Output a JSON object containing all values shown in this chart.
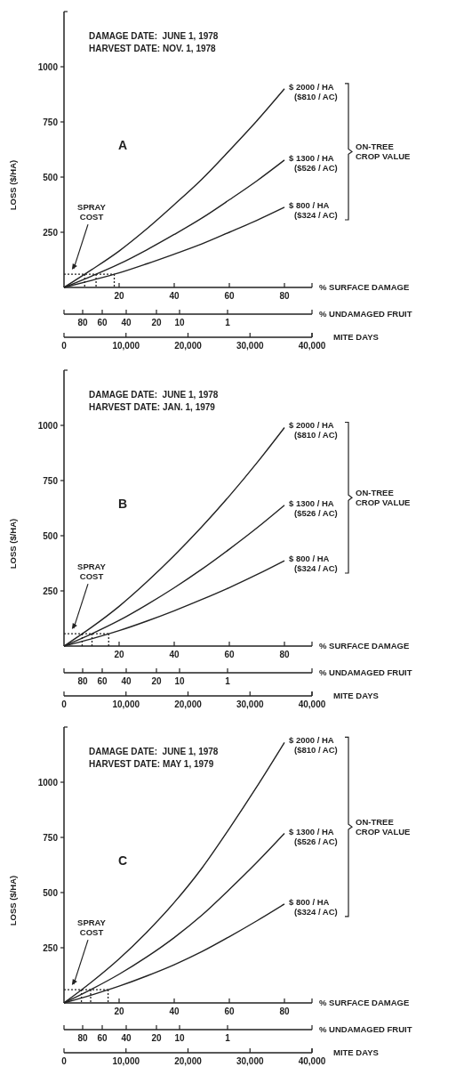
{
  "chart_data": [
    {
      "type": "line",
      "ylabel": "LOSS ($/HA)",
      "xlabel": "% SURFACE DAMAGE",
      "x2label": "MITE DAYS",
      "x": [
        0,
        10,
        20,
        30,
        40,
        50,
        60,
        70,
        80
      ],
      "series": [
        {
          "name": "$ 2000 / HA ($810 / AC)",
          "color": "#222222",
          "values": [
            0,
            80,
            165,
            265,
            375,
            490,
            620,
            755,
            900
          ]
        },
        {
          "name": "$ 1300 / HA ($526 / AC)",
          "color": "#222222",
          "values": [
            0,
            51,
            106,
            170,
            240,
            314,
            397,
            483,
            577
          ]
        },
        {
          "name": "$ 800 / HA ($324 / AC)",
          "color": "#222222",
          "values": [
            0,
            32,
            66,
            107,
            151,
            197,
            250,
            304,
            363
          ]
        }
      ],
      "xlim": [
        0,
        90
      ],
      "xticks": [
        20,
        40,
        60,
        80
      ],
      "ylim": [
        0,
        1250
      ],
      "yticks": [
        250,
        500,
        750,
        1000
      ],
      "x2lim": [
        0,
        40000
      ],
      "x2ticks": [
        {
          "value": 0,
          "label": "0"
        },
        {
          "value": 10000,
          "label": "10,000"
        },
        {
          "value": 20000,
          "label": "20,000"
        },
        {
          "value": 30000,
          "label": "30,000"
        },
        {
          "value": 40000,
          "label": "40,000"
        }
      ],
      "ref_lines": [
        {
          "axis": "y",
          "value": 60,
          "label": "SPRAY COST",
          "line_style": "dotted"
        }
      ],
      "annotations": [
        "DAMAGE DATE:  JUNE 1, 1978",
        "HARVEST DATE: NOV. 1, 1978",
        "A",
        "ON-TREE CROP VALUE",
        "% UNDAMAGED FRUIT",
        "80",
        "60",
        "40",
        "20",
        "10",
        "1"
      ],
      "line_style": "solid"
    },
    {
      "type": "line",
      "ylabel": "LOSS ($/HA)",
      "xlabel": "% SURFACE DAMAGE",
      "x2label": "MITE DAYS",
      "x": [
        0,
        10,
        20,
        30,
        40,
        50,
        60,
        70,
        80
      ],
      "series": [
        {
          "name": "$ 2000 / HA ($810 / AC)",
          "color": "#222222",
          "values": [
            0,
            85,
            180,
            290,
            410,
            540,
            680,
            830,
            990
          ]
        },
        {
          "name": "$ 1300 / HA ($526 / AC)",
          "color": "#222222",
          "values": [
            0,
            55,
            116,
            187,
            264,
            348,
            439,
            535,
            638
          ]
        },
        {
          "name": "$ 800 / HA ($324 / AC)",
          "color": "#222222",
          "values": [
            0,
            33,
            70,
            113,
            160,
            211,
            265,
            324,
            387
          ]
        }
      ],
      "xlim": [
        0,
        90
      ],
      "xticks": [
        20,
        40,
        60,
        80
      ],
      "ylim": [
        0,
        1250
      ],
      "yticks": [
        250,
        500,
        750,
        1000
      ],
      "x2lim": [
        0,
        40000
      ],
      "x2ticks": [
        {
          "value": 0,
          "label": "0"
        },
        {
          "value": 10000,
          "label": "10,000"
        },
        {
          "value": 20000,
          "label": "20,000"
        },
        {
          "value": 30000,
          "label": "30,000"
        },
        {
          "value": 40000,
          "label": "40,000"
        }
      ],
      "ref_lines": [
        {
          "axis": "y",
          "value": 56,
          "label": "SPRAY COST",
          "line_style": "dotted"
        }
      ],
      "annotations": [
        "DAMAGE DATE:  JUNE 1, 1978",
        "HARVEST DATE: JAN. 1, 1979",
        "B",
        "ON-TREE CROP VALUE",
        "% UNDAMAGED FRUIT",
        "80",
        "60",
        "40",
        "20",
        "10",
        "1"
      ],
      "line_style": "solid"
    },
    {
      "type": "line",
      "ylabel": "LOSS ($/HA)",
      "xlabel": "% SURFACE DAMAGE",
      "x2label": "MITE DAYS",
      "x": [
        0,
        10,
        20,
        30,
        40,
        50,
        60,
        70,
        80
      ],
      "series": [
        {
          "name": "$ 2000 / HA ($810 / AC)",
          "color": "#222222",
          "values": [
            0,
            95,
            200,
            320,
            455,
            610,
            790,
            980,
            1180
          ]
        },
        {
          "name": "$ 1300 / HA ($526 / AC)",
          "color": "#222222",
          "values": [
            0,
            62,
            130,
            208,
            296,
            397,
            514,
            637,
            768
          ]
        },
        {
          "name": "$ 800 / HA ($324 / AC)",
          "color": "#222222",
          "values": [
            0,
            36,
            76,
            122,
            173,
            232,
            300,
            372,
            448
          ]
        }
      ],
      "xlim": [
        0,
        90
      ],
      "xticks": [
        20,
        40,
        60,
        80
      ],
      "ylim": [
        0,
        1250
      ],
      "yticks": [
        250,
        500,
        750,
        1000
      ],
      "x2lim": [
        0,
        40000
      ],
      "x2ticks": [
        {
          "value": 0,
          "label": "0"
        },
        {
          "value": 10000,
          "label": "10,000"
        },
        {
          "value": 20000,
          "label": "20,000"
        },
        {
          "value": 30000,
          "label": "30,000"
        },
        {
          "value": 40000,
          "label": "40,000"
        }
      ],
      "ref_lines": [
        {
          "axis": "y",
          "value": 60,
          "label": "SPRAY COST",
          "line_style": "dotted"
        }
      ],
      "annotations": [
        "DAMAGE DATE:  JUNE 1, 1978",
        "HARVEST DATE: MAY 1, 1979",
        "C",
        "ON-TREE CROP VALUE",
        "% UNDAMAGED FRUIT",
        "80",
        "60",
        "40",
        "20",
        "10",
        "1"
      ],
      "line_style": "solid"
    }
  ]
}
